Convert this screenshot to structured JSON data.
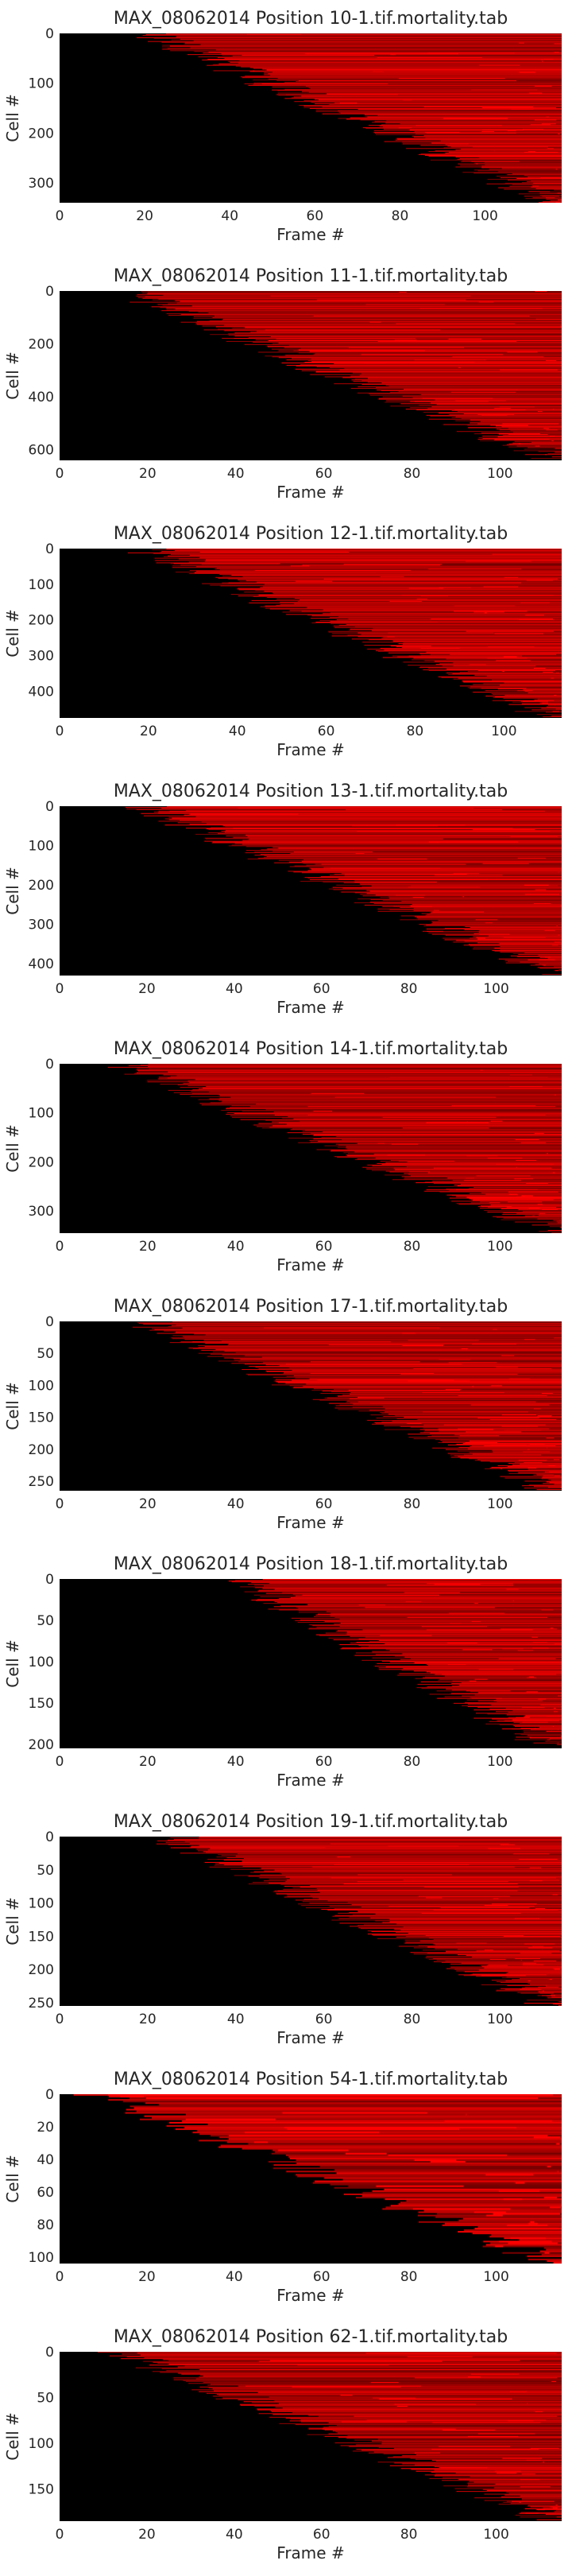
{
  "colors": {
    "background": "#000000",
    "signal": "#ff0000",
    "text": "#262626"
  },
  "chart_data": [
    {
      "type": "heatmap",
      "title": "MAX_08062014 Position 10-1.tif.mortality.tab",
      "xlabel": "Frame #",
      "ylabel": "Cell #",
      "xlim": [
        0,
        118
      ],
      "ylim": [
        0,
        340
      ],
      "xticks": [
        0,
        20,
        40,
        60,
        80,
        100
      ],
      "yticks": [
        0,
        100,
        200,
        300
      ],
      "onset_start_frame": 22,
      "onset_end_frame": 118
    },
    {
      "type": "heatmap",
      "title": "MAX_08062014 Position 11-1.tif.mortality.tab",
      "xlabel": "Frame #",
      "ylabel": "Cell #",
      "xlim": [
        0,
        114
      ],
      "ylim": [
        0,
        640
      ],
      "xticks": [
        0,
        20,
        40,
        60,
        80,
        100
      ],
      "yticks": [
        0,
        200,
        400,
        600
      ],
      "onset_start_frame": 15,
      "onset_end_frame": 114
    },
    {
      "type": "heatmap",
      "title": "MAX_08062014 Position 12-1.tif.mortality.tab",
      "xlabel": "Frame #",
      "ylabel": "Cell #",
      "xlim": [
        0,
        113
      ],
      "ylim": [
        0,
        475
      ],
      "xticks": [
        0,
        20,
        40,
        60,
        80,
        100
      ],
      "yticks": [
        0,
        100,
        200,
        300,
        400
      ],
      "onset_start_frame": 20,
      "onset_end_frame": 113
    },
    {
      "type": "heatmap",
      "title": "MAX_08062014 Position 13-1.tif.mortality.tab",
      "xlabel": "Frame #",
      "ylabel": "Cell #",
      "xlim": [
        0,
        115
      ],
      "ylim": [
        0,
        430
      ],
      "xticks": [
        0,
        20,
        40,
        60,
        80,
        100
      ],
      "yticks": [
        0,
        100,
        200,
        300,
        400
      ],
      "onset_start_frame": 20,
      "onset_end_frame": 115
    },
    {
      "type": "heatmap",
      "title": "MAX_08062014 Position 14-1.tif.mortality.tab",
      "xlabel": "Frame #",
      "ylabel": "Cell #",
      "xlim": [
        0,
        114
      ],
      "ylim": [
        0,
        345
      ],
      "xticks": [
        0,
        20,
        40,
        60,
        80,
        100
      ],
      "yticks": [
        0,
        100,
        200,
        300
      ],
      "onset_start_frame": 15,
      "onset_end_frame": 114
    },
    {
      "type": "heatmap",
      "title": "MAX_08062014 Position 17-1.tif.mortality.tab",
      "xlabel": "Frame #",
      "ylabel": "Cell #",
      "xlim": [
        0,
        114
      ],
      "ylim": [
        0,
        265
      ],
      "xticks": [
        0,
        20,
        40,
        60,
        80,
        100
      ],
      "yticks": [
        0,
        50,
        100,
        150,
        200,
        250
      ],
      "onset_start_frame": 20,
      "onset_end_frame": 114
    },
    {
      "type": "heatmap",
      "title": "MAX_08062014 Position 18-1.tif.mortality.tab",
      "xlabel": "Frame #",
      "ylabel": "Cell #",
      "xlim": [
        0,
        114
      ],
      "ylim": [
        0,
        205
      ],
      "xticks": [
        0,
        20,
        40,
        60,
        80,
        100
      ],
      "yticks": [
        0,
        50,
        100,
        150,
        200
      ],
      "onset_start_frame": 40,
      "onset_end_frame": 114
    },
    {
      "type": "heatmap",
      "title": "MAX_08062014 Position 19-1.tif.mortality.tab",
      "xlabel": "Frame #",
      "ylabel": "Cell #",
      "xlim": [
        0,
        114
      ],
      "ylim": [
        0,
        255
      ],
      "xticks": [
        0,
        20,
        40,
        60,
        80,
        100
      ],
      "yticks": [
        0,
        50,
        100,
        150,
        200,
        250
      ],
      "onset_start_frame": 25,
      "onset_end_frame": 114
    },
    {
      "type": "heatmap",
      "title": "MAX_08062014 Position 54-1.tif.mortality.tab",
      "xlabel": "Frame #",
      "ylabel": "Cell #",
      "xlim": [
        0,
        115
      ],
      "ylim": [
        0,
        104
      ],
      "xticks": [
        0,
        20,
        40,
        60,
        80,
        100
      ],
      "yticks": [
        0,
        20,
        40,
        60,
        80,
        100
      ],
      "onset_start_frame": 10,
      "onset_end_frame": 115
    },
    {
      "type": "heatmap",
      "title": "MAX_08062014 Position 62-1.tif.mortality.tab",
      "xlabel": "Frame #",
      "ylabel": "Cell #",
      "xlim": [
        0,
        115
      ],
      "ylim": [
        0,
        185
      ],
      "xticks": [
        0,
        20,
        40,
        60,
        80,
        100
      ],
      "yticks": [
        0,
        50,
        100,
        150
      ],
      "onset_start_frame": 15,
      "onset_end_frame": 115
    }
  ]
}
